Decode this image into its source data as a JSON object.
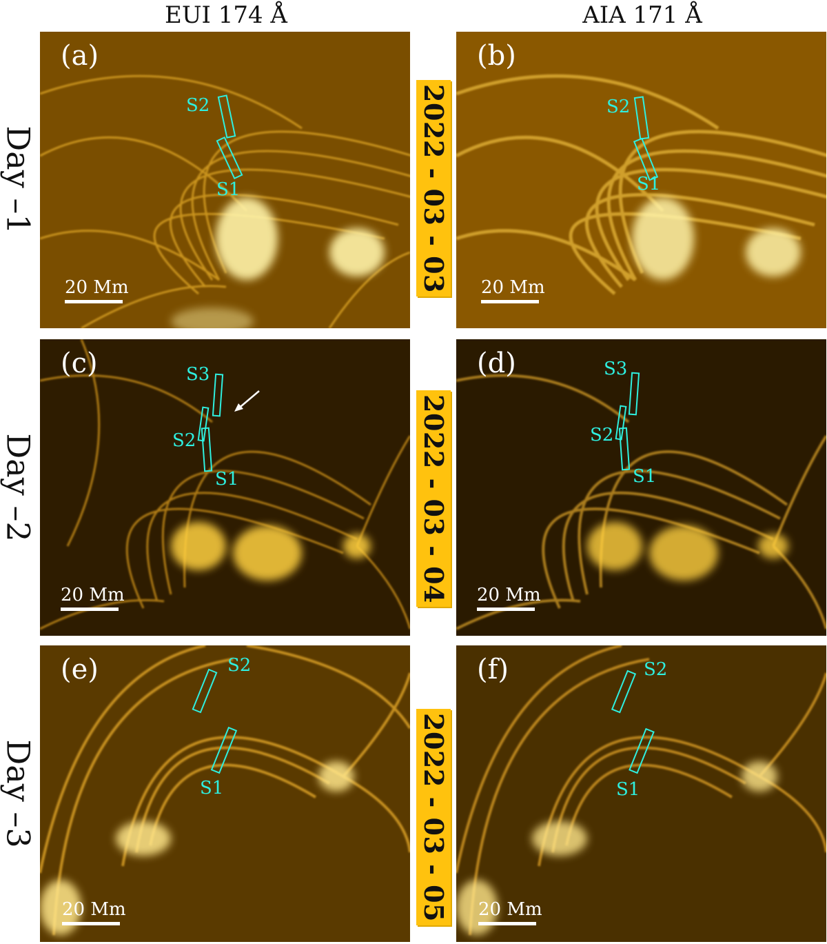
{
  "columns": {
    "left": "EUI 174 Å",
    "right": "AIA 171 Å"
  },
  "rows": [
    {
      "day_label": "Day –1",
      "date": "2022 - 03 - 03",
      "panels": [
        {
          "label": "(a)",
          "scale": "20 Mm",
          "slits": [
            "S2",
            "S1"
          ]
        },
        {
          "label": "(b)",
          "scale": "20 Mm",
          "slits": [
            "S2",
            "S1"
          ]
        }
      ]
    },
    {
      "day_label": "Day –2",
      "date": "2022 - 03 - 04",
      "panels": [
        {
          "label": "(c)",
          "scale": "20 Mm",
          "slits": [
            "S3",
            "S2",
            "S1"
          ]
        },
        {
          "label": "(d)",
          "scale": "20 Mm",
          "slits": [
            "S3",
            "S2",
            "S1"
          ]
        }
      ]
    },
    {
      "day_label": "Day –3",
      "date": "2022 - 03 - 05",
      "panels": [
        {
          "label": "(e)",
          "scale": "20 Mm",
          "slits": [
            "S2",
            "S1"
          ]
        },
        {
          "label": "(f)",
          "scale": "20 Mm",
          "slits": [
            "S2",
            "S1"
          ]
        }
      ]
    }
  ],
  "colors": {
    "image_base": "#6b4500",
    "image_bright": "#ffd966",
    "slit": "#2ef0e0",
    "date_box": "#FFC20E"
  }
}
